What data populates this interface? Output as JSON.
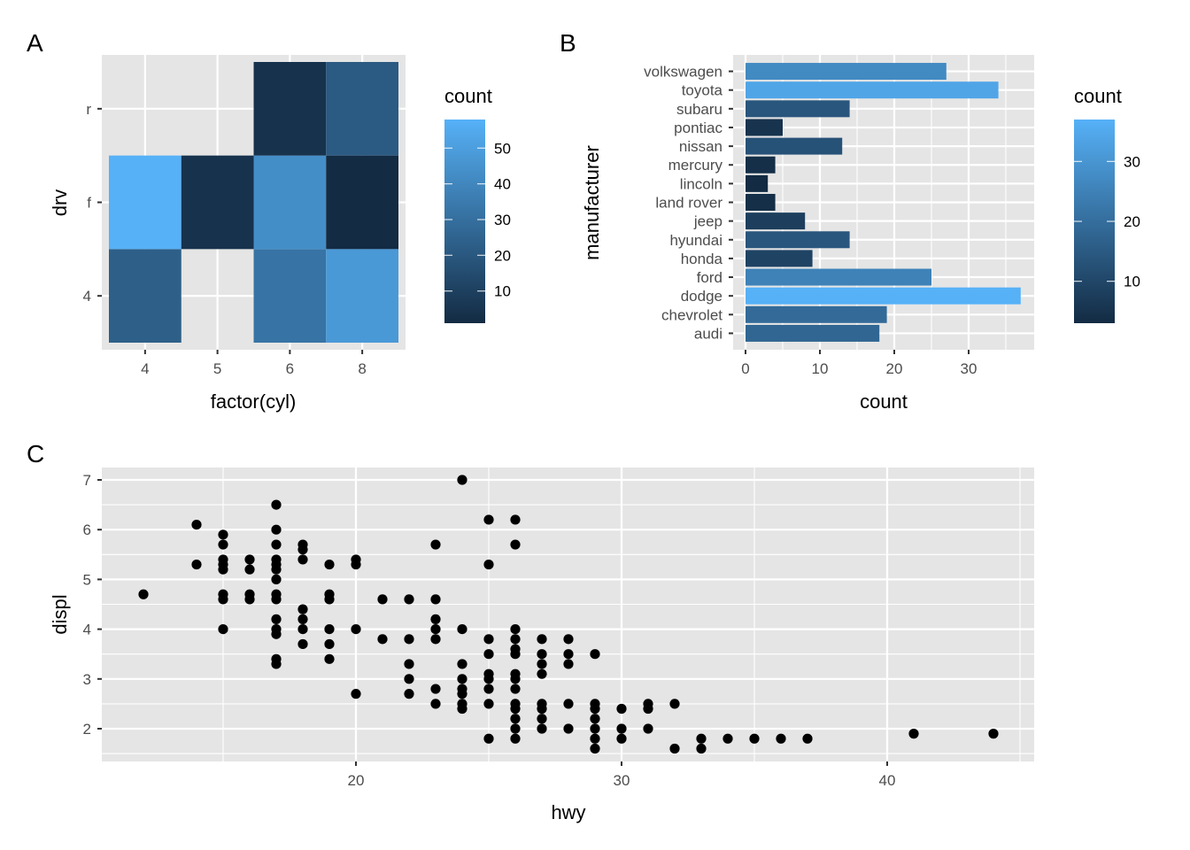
{
  "colors": {
    "panel_bg": "#e5e5e5",
    "grid": "#ffffff",
    "low": "#132b43",
    "high": "#56b1f7",
    "point": "#000000"
  },
  "chart_data": [
    {
      "tag": "A",
      "type": "heatmap",
      "title": "",
      "xlabel": "factor(cyl)",
      "ylabel": "drv",
      "x_categories": [
        "4",
        "5",
        "6",
        "8"
      ],
      "y_categories": [
        "4",
        "f",
        "r"
      ],
      "cells": [
        {
          "x": "4",
          "y": "4",
          "value": 23
        },
        {
          "x": "4",
          "y": "f",
          "value": 58
        },
        {
          "x": "5",
          "y": "f",
          "value": 4
        },
        {
          "x": "6",
          "y": "4",
          "value": 32
        },
        {
          "x": "6",
          "y": "f",
          "value": 43
        },
        {
          "x": "6",
          "y": "r",
          "value": 4
        },
        {
          "x": "8",
          "y": "4",
          "value": 48
        },
        {
          "x": "8",
          "y": "f",
          "value": 1
        },
        {
          "x": "8",
          "y": "r",
          "value": 21
        }
      ],
      "legend": {
        "title": "count",
        "range": [
          1,
          58
        ],
        "ticks": [
          10,
          20,
          30,
          40,
          50
        ],
        "position": "right"
      }
    },
    {
      "tag": "B",
      "type": "bar",
      "orientation": "horizontal",
      "title": "",
      "xlabel": "count",
      "ylabel": "manufacturer",
      "categories": [
        "audi",
        "chevrolet",
        "dodge",
        "ford",
        "honda",
        "hyundai",
        "jeep",
        "land rover",
        "lincoln",
        "mercury",
        "nissan",
        "pontiac",
        "subaru",
        "toyota",
        "volkswagen"
      ],
      "values": [
        18,
        19,
        37,
        25,
        9,
        14,
        8,
        4,
        3,
        4,
        13,
        5,
        14,
        34,
        27
      ],
      "xlim": [
        0,
        38.85
      ],
      "xticks": [
        0,
        10,
        20,
        30
      ],
      "legend": {
        "title": "count",
        "range": [
          3,
          37
        ],
        "ticks": [
          10,
          20,
          30
        ],
        "position": "right"
      }
    },
    {
      "tag": "C",
      "type": "scatter",
      "title": "",
      "xlabel": "hwy",
      "ylabel": "displ",
      "xlim": [
        10.4,
        45.6
      ],
      "ylim": [
        1.33,
        7.27
      ],
      "xticks": [
        20,
        30,
        40
      ],
      "yticks": [
        2,
        3,
        4,
        5,
        6,
        7
      ],
      "points": [
        [
          12,
          4.7
        ],
        [
          14,
          6.1
        ],
        [
          14,
          5.3
        ],
        [
          15,
          5.9
        ],
        [
          15,
          5.7
        ],
        [
          15,
          5.4
        ],
        [
          15,
          5.3
        ],
        [
          15,
          5.2
        ],
        [
          15,
          4.7
        ],
        [
          15,
          4.6
        ],
        [
          15,
          4.0
        ],
        [
          16,
          5.4
        ],
        [
          16,
          5.2
        ],
        [
          16,
          4.7
        ],
        [
          16,
          4.6
        ],
        [
          17,
          6.5
        ],
        [
          17,
          6.0
        ],
        [
          17,
          5.7
        ],
        [
          17,
          5.4
        ],
        [
          17,
          5.3
        ],
        [
          17,
          5.2
        ],
        [
          17,
          5.0
        ],
        [
          17,
          4.7
        ],
        [
          17,
          4.6
        ],
        [
          17,
          4.2
        ],
        [
          17,
          4.0
        ],
        [
          17,
          3.9
        ],
        [
          17,
          3.4
        ],
        [
          17,
          3.3
        ],
        [
          18,
          5.7
        ],
        [
          18,
          5.6
        ],
        [
          18,
          5.4
        ],
        [
          18,
          4.4
        ],
        [
          18,
          4.2
        ],
        [
          18,
          4.0
        ],
        [
          18,
          3.7
        ],
        [
          19,
          5.3
        ],
        [
          19,
          4.7
        ],
        [
          19,
          4.6
        ],
        [
          19,
          4.0
        ],
        [
          19,
          3.7
        ],
        [
          19,
          3.4
        ],
        [
          20,
          5.4
        ],
        [
          20,
          5.3
        ],
        [
          20,
          4.0
        ],
        [
          20,
          2.7
        ],
        [
          21,
          4.6
        ],
        [
          21,
          3.8
        ],
        [
          22,
          4.6
        ],
        [
          22,
          3.8
        ],
        [
          22,
          3.3
        ],
        [
          22,
          3.0
        ],
        [
          22,
          2.7
        ],
        [
          23,
          5.7
        ],
        [
          23,
          4.6
        ],
        [
          23,
          4.2
        ],
        [
          23,
          4.0
        ],
        [
          23,
          3.8
        ],
        [
          23,
          2.8
        ],
        [
          23,
          2.5
        ],
        [
          24,
          7.0
        ],
        [
          24,
          4.0
        ],
        [
          24,
          3.3
        ],
        [
          24,
          3.0
        ],
        [
          24,
          2.8
        ],
        [
          24,
          2.7
        ],
        [
          24,
          2.5
        ],
        [
          24,
          2.4
        ],
        [
          25,
          6.2
        ],
        [
          25,
          5.3
        ],
        [
          25,
          3.8
        ],
        [
          25,
          3.5
        ],
        [
          25,
          3.1
        ],
        [
          25,
          3.0
        ],
        [
          25,
          2.8
        ],
        [
          25,
          2.5
        ],
        [
          25,
          1.8
        ],
        [
          26,
          6.2
        ],
        [
          26,
          5.7
        ],
        [
          26,
          4.0
        ],
        [
          26,
          3.8
        ],
        [
          26,
          3.6
        ],
        [
          26,
          3.5
        ],
        [
          26,
          3.1
        ],
        [
          26,
          3.0
        ],
        [
          26,
          2.8
        ],
        [
          26,
          2.5
        ],
        [
          26,
          2.4
        ],
        [
          26,
          2.2
        ],
        [
          26,
          2.0
        ],
        [
          26,
          1.8
        ],
        [
          27,
          3.8
        ],
        [
          27,
          3.5
        ],
        [
          27,
          3.3
        ],
        [
          27,
          3.1
        ],
        [
          27,
          2.5
        ],
        [
          27,
          2.4
        ],
        [
          27,
          2.2
        ],
        [
          27,
          2.0
        ],
        [
          28,
          3.8
        ],
        [
          28,
          3.5
        ],
        [
          28,
          3.3
        ],
        [
          28,
          2.5
        ],
        [
          28,
          2.0
        ],
        [
          29,
          3.5
        ],
        [
          29,
          2.5
        ],
        [
          29,
          2.4
        ],
        [
          29,
          2.2
        ],
        [
          29,
          2.0
        ],
        [
          29,
          1.8
        ],
        [
          29,
          1.6
        ],
        [
          30,
          2.4
        ],
        [
          30,
          2.0
        ],
        [
          30,
          1.8
        ],
        [
          31,
          2.5
        ],
        [
          31,
          2.4
        ],
        [
          31,
          2.0
        ],
        [
          32,
          2.5
        ],
        [
          32,
          1.6
        ],
        [
          33,
          1.8
        ],
        [
          33,
          1.6
        ],
        [
          34,
          1.8
        ],
        [
          35,
          1.8
        ],
        [
          36,
          1.8
        ],
        [
          37,
          1.8
        ],
        [
          41,
          1.9
        ],
        [
          44,
          1.9
        ]
      ]
    }
  ]
}
